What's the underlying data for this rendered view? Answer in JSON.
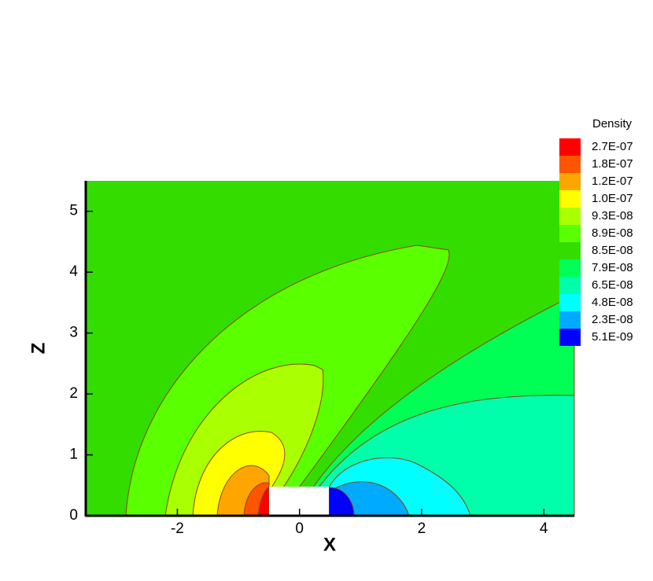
{
  "chart_data": {
    "type": "contour",
    "legend_title": "Density",
    "x_label": "X",
    "y_label": "Z",
    "xlim": [
      -3.5,
      4.5
    ],
    "ylim": [
      0,
      5.5
    ],
    "xticks": [
      -2,
      0,
      2,
      4
    ],
    "yticks": [
      0,
      1,
      2,
      3,
      4,
      5
    ],
    "levels": [
      {
        "value": 2.7e-07,
        "label": "2.7E-07",
        "color": "#ff0000"
      },
      {
        "value": 1.8e-07,
        "label": "1.8E-07",
        "color": "#ff5500"
      },
      {
        "value": 1.2e-07,
        "label": "1.2E-07",
        "color": "#ffa500"
      },
      {
        "value": 1e-07,
        "label": "1.0E-07",
        "color": "#ffff00"
      },
      {
        "value": 9.3e-08,
        "label": "9.3E-08",
        "color": "#aaff00"
      },
      {
        "value": 8.9e-08,
        "label": "8.9E-08",
        "color": "#5aff00"
      },
      {
        "value": 8.5e-08,
        "label": "8.5E-08",
        "color": "#33dd00"
      },
      {
        "value": 7.9e-08,
        "label": "7.9E-08",
        "color": "#00ff55"
      },
      {
        "value": 6.5e-08,
        "label": "6.5E-08",
        "color": "#00ffaa"
      },
      {
        "value": 4.8e-08,
        "label": "4.8E-08",
        "color": "#00ffff"
      },
      {
        "value": 2.3e-08,
        "label": "2.3E-08",
        "color": "#00aaff"
      },
      {
        "value": 5.1e-09,
        "label": "5.1E-09",
        "color": "#0000ff"
      }
    ]
  }
}
